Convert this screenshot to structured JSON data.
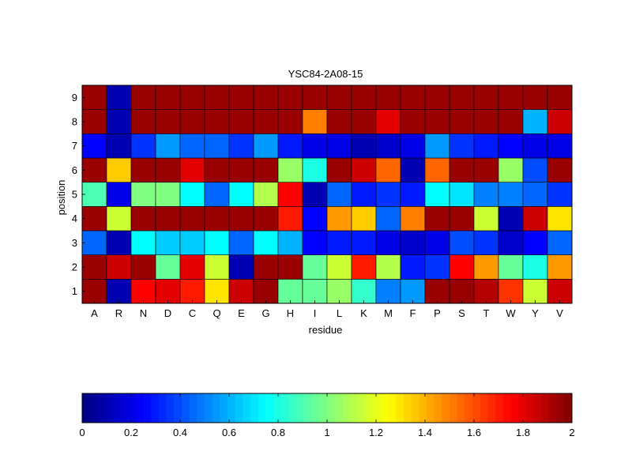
{
  "chart_data": {
    "type": "heatmap",
    "title": "YSC84-2A08-15",
    "xlabel": "residue",
    "ylabel": "position",
    "x_categories": [
      "A",
      "R",
      "N",
      "D",
      "C",
      "Q",
      "E",
      "G",
      "H",
      "I",
      "L",
      "K",
      "M",
      "F",
      "P",
      "S",
      "T",
      "W",
      "Y",
      "V"
    ],
    "y_categories": [
      "1",
      "2",
      "3",
      "4",
      "5",
      "6",
      "7",
      "8",
      "9"
    ],
    "colormap": "jet",
    "clim": [
      0,
      2
    ],
    "colorbar": {
      "location": "bottom",
      "ticks": [
        0,
        0.2,
        0.4,
        0.6,
        0.8,
        1,
        1.2,
        1.4,
        1.6,
        1.8,
        2
      ],
      "tick_labels": [
        "0",
        "0.2",
        "0.4",
        "0.6",
        "0.8",
        "1",
        "1.2",
        "1.4",
        "1.6",
        "1.8",
        "2"
      ]
    },
    "values": [
      [
        1.95,
        0.1,
        1.75,
        1.8,
        1.7,
        1.3,
        1.85,
        1.95,
        0.95,
        0.95,
        1.05,
        0.85,
        0.5,
        0.55,
        1.95,
        1.95,
        1.9,
        1.65,
        1.15,
        1.85
      ],
      [
        1.95,
        1.85,
        1.95,
        0.95,
        1.8,
        1.15,
        0.1,
        1.95,
        1.95,
        0.95,
        1.15,
        1.7,
        1.1,
        0.3,
        0.35,
        1.75,
        1.45,
        0.95,
        0.8,
        1.45
      ],
      [
        0.45,
        0.1,
        0.75,
        0.65,
        0.65,
        0.75,
        0.45,
        0.75,
        0.6,
        0.25,
        0.3,
        0.3,
        0.2,
        0.15,
        0.2,
        0.4,
        0.35,
        0.15,
        0.25,
        0.45
      ],
      [
        1.95,
        1.15,
        1.95,
        1.95,
        1.95,
        1.95,
        1.95,
        1.95,
        1.7,
        0.25,
        1.45,
        1.35,
        0.45,
        1.5,
        1.95,
        1.95,
        1.15,
        0.1,
        1.85,
        1.3
      ],
      [
        0.9,
        0.2,
        1.0,
        1.0,
        0.75,
        0.45,
        0.75,
        1.1,
        1.75,
        0.1,
        0.45,
        0.3,
        0.35,
        0.3,
        0.75,
        0.7,
        0.5,
        0.5,
        0.45,
        0.35
      ],
      [
        1.95,
        1.35,
        1.95,
        1.95,
        1.8,
        1.95,
        1.95,
        1.95,
        1.05,
        0.8,
        1.95,
        1.85,
        1.55,
        0.1,
        1.55,
        1.95,
        1.95,
        1.05,
        0.4,
        1.95
      ],
      [
        0.25,
        0.1,
        0.35,
        0.55,
        0.45,
        0.45,
        0.35,
        0.55,
        0.3,
        0.2,
        0.2,
        0.1,
        0.15,
        0.2,
        0.55,
        0.35,
        0.3,
        0.25,
        0.2,
        0.2
      ],
      [
        1.95,
        0.1,
        1.95,
        1.95,
        1.95,
        1.95,
        1.95,
        1.95,
        1.95,
        1.5,
        1.95,
        1.95,
        1.8,
        1.95,
        1.95,
        1.95,
        1.95,
        1.95,
        0.6,
        1.85
      ],
      [
        1.95,
        0.1,
        1.95,
        1.95,
        1.95,
        1.95,
        1.95,
        1.95,
        1.95,
        1.95,
        1.95,
        1.95,
        1.95,
        1.95,
        1.95,
        1.95,
        1.95,
        1.95,
        1.95,
        1.95
      ]
    ]
  }
}
